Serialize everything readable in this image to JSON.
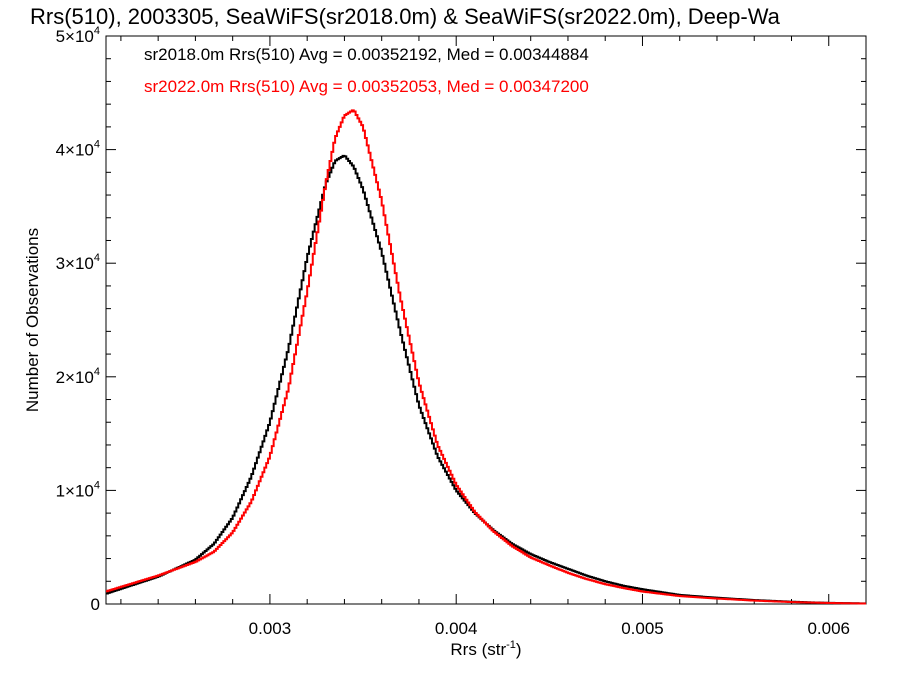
{
  "chart_data": {
    "type": "line",
    "title": "Rrs(510), 2003305, SeaWiFS(sr2018.0m) & SeaWiFS(sr2022.0m), Deep-Wa",
    "xlabel": "Rrs (str",
    "xlabel_sup": "-1",
    "xlabel_end": ")",
    "ylabel": "Number of Observations",
    "xlim": [
      0.00212,
      0.0062
    ],
    "ylim": [
      0,
      50000
    ],
    "x_ticks": [
      {
        "value": 0.003,
        "label": "0.003"
      },
      {
        "value": 0.004,
        "label": "0.004"
      },
      {
        "value": 0.005,
        "label": "0.005"
      },
      {
        "value": 0.006,
        "label": "0.006"
      }
    ],
    "y_ticks": [
      {
        "value": 0,
        "base": "0",
        "exp": ""
      },
      {
        "value": 10000,
        "base": "1×10",
        "exp": "4"
      },
      {
        "value": 20000,
        "base": "2×10",
        "exp": "4"
      },
      {
        "value": 30000,
        "base": "3×10",
        "exp": "4"
      },
      {
        "value": 40000,
        "base": "4×10",
        "exp": "4"
      },
      {
        "value": 50000,
        "base": "5×10",
        "exp": "4"
      }
    ],
    "grid": false,
    "series": [
      {
        "name": "sr2018.0m",
        "label": "sr2018.0m Rrs(510) Avg = 0.00352192, Med = 0.00344884",
        "color": "#000000",
        "points": [
          [
            0.00212,
            900
          ],
          [
            0.0024,
            2400
          ],
          [
            0.0026,
            3900
          ],
          [
            0.0027,
            5300
          ],
          [
            0.0028,
            7600
          ],
          [
            0.0029,
            11200
          ],
          [
            0.003,
            16000
          ],
          [
            0.0031,
            22500
          ],
          [
            0.0032,
            30500
          ],
          [
            0.0033,
            37000
          ],
          [
            0.00335,
            39000
          ],
          [
            0.0034,
            39500
          ],
          [
            0.00345,
            38500
          ],
          [
            0.0035,
            36500
          ],
          [
            0.0036,
            31000
          ],
          [
            0.0037,
            24000
          ],
          [
            0.0038,
            17500
          ],
          [
            0.0039,
            13000
          ],
          [
            0.004,
            10000
          ],
          [
            0.0041,
            8000
          ],
          [
            0.0042,
            6500
          ],
          [
            0.0043,
            5300
          ],
          [
            0.0044,
            4400
          ],
          [
            0.0045,
            3700
          ],
          [
            0.0046,
            3100
          ],
          [
            0.0047,
            2500
          ],
          [
            0.0048,
            2000
          ],
          [
            0.0049,
            1600
          ],
          [
            0.005,
            1300
          ],
          [
            0.0052,
            800
          ],
          [
            0.0054,
            550
          ],
          [
            0.0056,
            350
          ],
          [
            0.0058,
            200
          ],
          [
            0.006,
            100
          ],
          [
            0.0062,
            50
          ]
        ]
      },
      {
        "name": "sr2022.0m",
        "label": "sr2022.0m Rrs(510) Avg = 0.00352053, Med = 0.00347200",
        "color": "#ff0000",
        "points": [
          [
            0.00212,
            1100
          ],
          [
            0.0024,
            2500
          ],
          [
            0.0026,
            3700
          ],
          [
            0.0027,
            4600
          ],
          [
            0.0028,
            6300
          ],
          [
            0.0029,
            9000
          ],
          [
            0.003,
            13000
          ],
          [
            0.0031,
            19000
          ],
          [
            0.0032,
            27500
          ],
          [
            0.0033,
            37000
          ],
          [
            0.00335,
            41000
          ],
          [
            0.0034,
            43000
          ],
          [
            0.00345,
            43500
          ],
          [
            0.0035,
            42000
          ],
          [
            0.0036,
            35500
          ],
          [
            0.0037,
            27000
          ],
          [
            0.0038,
            19500
          ],
          [
            0.0039,
            14000
          ],
          [
            0.004,
            10500
          ],
          [
            0.0041,
            8100
          ],
          [
            0.0042,
            6400
          ],
          [
            0.0043,
            5100
          ],
          [
            0.0044,
            4100
          ],
          [
            0.0045,
            3400
          ],
          [
            0.0046,
            2750
          ],
          [
            0.0047,
            2200
          ],
          [
            0.0048,
            1750
          ],
          [
            0.0049,
            1400
          ],
          [
            0.005,
            1100
          ],
          [
            0.0052,
            700
          ],
          [
            0.0054,
            480
          ],
          [
            0.0056,
            300
          ],
          [
            0.0058,
            170
          ],
          [
            0.006,
            90
          ],
          [
            0.0062,
            40
          ]
        ]
      }
    ]
  }
}
